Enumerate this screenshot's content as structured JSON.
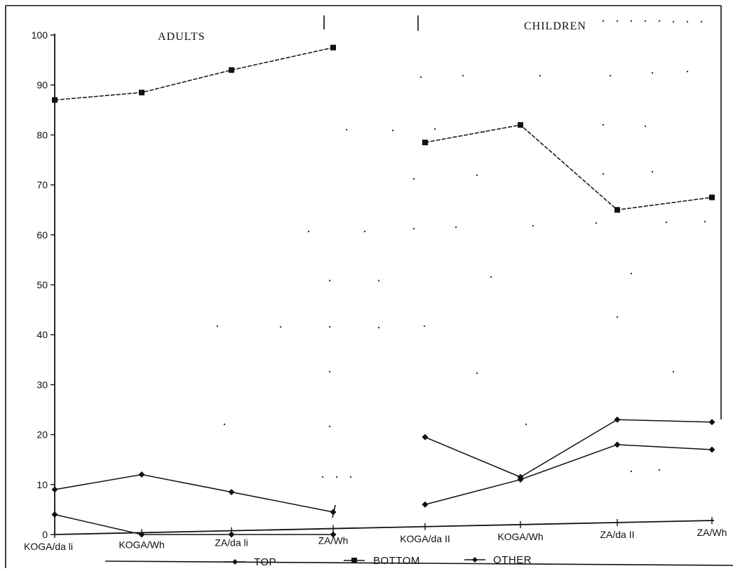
{
  "chart_data": {
    "type": "line",
    "panels": [
      {
        "title": "ADULTS",
        "categories": [
          "KOGA/da li",
          "KOGA/Wh",
          "ZA/da li",
          "ZA/Wh"
        ]
      },
      {
        "title": "CHILDREN",
        "categories": [
          "KOGA/da II",
          "KOGA/Wh",
          "ZA/da II",
          "ZA/Wh"
        ]
      }
    ],
    "series": [
      {
        "name": "TOP",
        "values": [
          4,
          0,
          0,
          0,
          6,
          11,
          18,
          17
        ]
      },
      {
        "name": "BOTTOM",
        "values": [
          87,
          88.5,
          93,
          97.5,
          78.5,
          82,
          65,
          67.5
        ]
      },
      {
        "name": "OTHER",
        "values": [
          9,
          12,
          8.5,
          4.5,
          19.5,
          11.5,
          23,
          22.5
        ]
      }
    ],
    "yticks": [
      0,
      10,
      20,
      30,
      40,
      50,
      60,
      70,
      80,
      90,
      100
    ],
    "ylim": [
      0,
      100
    ],
    "legend_position": "bottom",
    "grid": false
  }
}
